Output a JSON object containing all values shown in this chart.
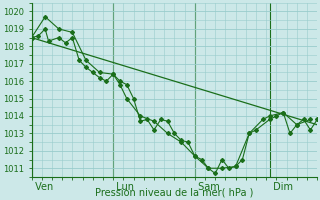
{
  "ylabel": "Pression niveau de la mer( hPa )",
  "background_color": "#cce8e8",
  "grid_color": "#99cccc",
  "line_color": "#1a6e1a",
  "ylim": [
    1010.5,
    1020.5
  ],
  "yticks": [
    1011,
    1012,
    1013,
    1014,
    1015,
    1016,
    1017,
    1018,
    1019,
    1020
  ],
  "day_labels": [
    " Ven",
    " Lun",
    " Sam",
    " Dim"
  ],
  "day_positions": [
    0,
    48,
    96,
    140
  ],
  "xlim": [
    0,
    168
  ],
  "series1_x": [
    0,
    4,
    8,
    10,
    16,
    20,
    24,
    28,
    32,
    36,
    40,
    44,
    48,
    52,
    56,
    60,
    64,
    68,
    72,
    76,
    80,
    84,
    88,
    92,
    96,
    100,
    104,
    108,
    112,
    116,
    120,
    124,
    128,
    132,
    140,
    144,
    148,
    152,
    156,
    160,
    164,
    168
  ],
  "series1_y": [
    1018.5,
    1018.6,
    1019.0,
    1018.3,
    1018.5,
    1018.2,
    1018.5,
    1017.2,
    1016.8,
    1016.5,
    1016.2,
    1016.0,
    1016.4,
    1016.0,
    1015.8,
    1015.0,
    1013.7,
    1013.8,
    1013.2,
    1013.8,
    1013.7,
    1013.0,
    1012.6,
    1012.5,
    1011.7,
    1011.5,
    1011.0,
    1010.7,
    1011.5,
    1011.0,
    1011.1,
    1011.5,
    1013.0,
    1013.2,
    1013.8,
    1014.0,
    1014.2,
    1013.0,
    1013.5,
    1013.8,
    1013.2,
    1013.8
  ],
  "series2_x": [
    0,
    8,
    16,
    24,
    32,
    40,
    48,
    52,
    56,
    64,
    72,
    80,
    88,
    96,
    104,
    112,
    120,
    128,
    136,
    140,
    148,
    156,
    164
  ],
  "series2_y": [
    1018.5,
    1019.7,
    1019.0,
    1018.8,
    1017.2,
    1016.5,
    1016.4,
    1015.8,
    1015.0,
    1014.0,
    1013.7,
    1013.0,
    1012.5,
    1011.7,
    1011.0,
    1011.0,
    1011.1,
    1013.0,
    1013.8,
    1014.0,
    1014.2,
    1013.5,
    1013.8
  ],
  "trend_x": [
    0,
    168
  ],
  "trend_y": [
    1018.5,
    1013.5
  ]
}
